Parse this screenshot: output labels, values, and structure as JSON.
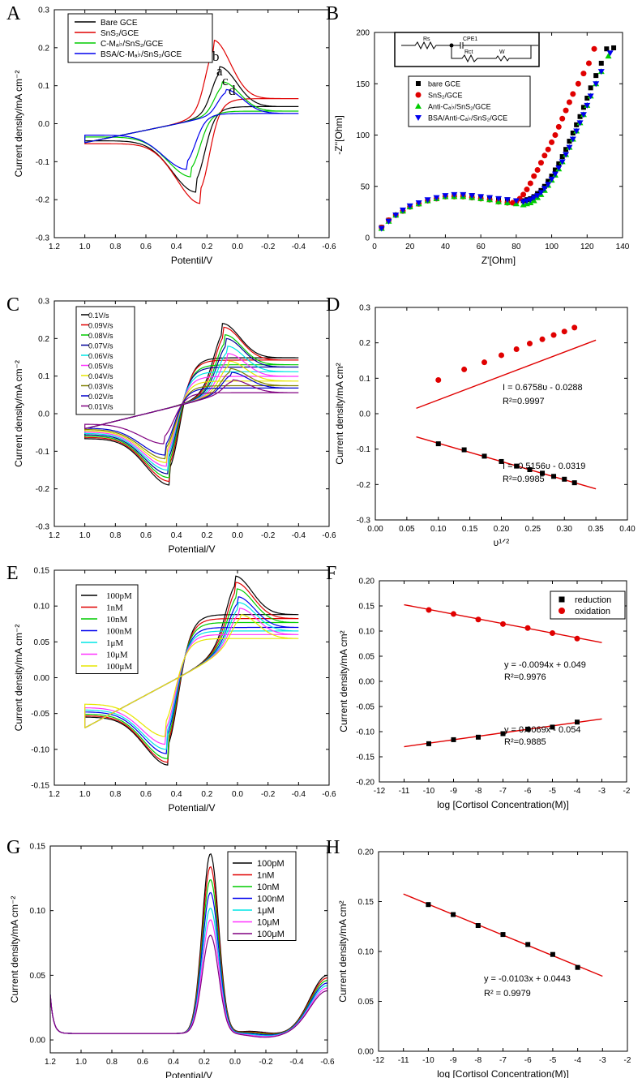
{
  "chart_data": [
    {
      "type": "line",
      "panel_label": "A",
      "xlabel": "Potentil/V",
      "ylabel": "Current density/mA cm⁻²",
      "xlim": [
        1.2,
        -0.6
      ],
      "ylim": [
        -0.3,
        0.3
      ],
      "xticks": [
        "1.2",
        "1.0",
        "0.8",
        "0.6",
        "0.4",
        "0.2",
        "0.0",
        "-0.2",
        "-0.4",
        "-0.6"
      ],
      "yticks": [
        "-0.3",
        "-0.2",
        "-0.1",
        "0.0",
        "0.1",
        "0.2",
        "0.3"
      ],
      "legend_position": "top-left",
      "annotations": [
        "b",
        "a",
        "c",
        "d"
      ],
      "series": [
        {
          "name": "Bare GCE",
          "color": "#000000",
          "x_range": [
            1.0,
            -0.4
          ],
          "anodic_peak": {
            "x": 0.12,
            "y": 0.15
          },
          "cathodic_peak": {
            "x": 0.27,
            "y": -0.18
          }
        },
        {
          "name": "SnS₂/GCE",
          "color": "#e00000",
          "x_range": [
            1.0,
            -0.4
          ],
          "anodic_peak": {
            "x": 0.16,
            "y": 0.22
          },
          "cathodic_peak": {
            "x": 0.24,
            "y": -0.21
          }
        },
        {
          "name": "C-Mₐ♭/SnS₂/GCE",
          "color": "#00cc00",
          "x_range": [
            1.0,
            -0.4
          ],
          "anodic_peak": {
            "x": 0.1,
            "y": 0.11
          },
          "cathodic_peak": {
            "x": 0.3,
            "y": -0.14
          }
        },
        {
          "name": "BSA/C-Mₐ♭/SnS₂/GCE",
          "color": "#0000ee",
          "x_range": [
            1.0,
            -0.4
          ],
          "anodic_peak": {
            "x": 0.08,
            "y": 0.09
          },
          "cathodic_peak": {
            "x": 0.33,
            "y": -0.12
          }
        }
      ]
    },
    {
      "type": "scatter",
      "panel_label": "B",
      "xlabel": "Z'[Ohm]",
      "ylabel": "-Z''[Ohm]",
      "xlim": [
        0,
        140
      ],
      "ylim": [
        0,
        200
      ],
      "xticks": [
        "0",
        "20",
        "40",
        "60",
        "80",
        "100",
        "120",
        "140"
      ],
      "yticks": [
        "0",
        "50",
        "100",
        "150",
        "200"
      ],
      "legend_position": "top-left",
      "circuit_labels": [
        "Rs",
        "CPE1",
        "Rct",
        "W"
      ],
      "series": [
        {
          "name": "bare GCE",
          "marker": "square",
          "color": "#000000",
          "x": [
            4,
            8,
            12,
            16,
            20,
            25,
            30,
            35,
            40,
            45,
            50,
            55,
            60,
            65,
            70,
            75,
            80,
            84,
            86,
            88,
            90,
            92,
            94,
            96,
            98,
            100,
            102,
            104,
            106,
            108,
            110,
            112,
            114,
            116,
            118,
            120,
            122,
            125,
            128,
            131,
            135
          ],
          "y": [
            10,
            17,
            22,
            26,
            30,
            33,
            36,
            38,
            40,
            41,
            41,
            41,
            40,
            39,
            38,
            37,
            36,
            36,
            37,
            38,
            40,
            43,
            46,
            50,
            55,
            60,
            66,
            72,
            79,
            86,
            94,
            102,
            110,
            118,
            127,
            136,
            146,
            158,
            170,
            184,
            185
          ]
        },
        {
          "name": "SnS₂/GCE",
          "marker": "circle",
          "color": "#e00000",
          "x": [
            4,
            8,
            12,
            16,
            20,
            25,
            30,
            35,
            40,
            45,
            50,
            55,
            60,
            65,
            70,
            75,
            78,
            80,
            82,
            84,
            86,
            88,
            90,
            92,
            94,
            96,
            98,
            100,
            102,
            104,
            106,
            108,
            110,
            112,
            115,
            118,
            121,
            124
          ],
          "y": [
            10,
            17,
            22,
            26,
            30,
            33,
            36,
            38,
            40,
            40,
            40,
            39,
            38,
            37,
            35,
            34,
            34,
            35,
            38,
            42,
            47,
            53,
            60,
            66,
            73,
            80,
            86,
            93,
            100,
            108,
            116,
            124,
            132,
            140,
            150,
            160,
            170,
            184
          ]
        },
        {
          "name": "Anti-Cₐ♭/SnS₂/GCE",
          "marker": "triangle-up",
          "color": "#00cc00",
          "x": [
            4,
            8,
            12,
            16,
            20,
            25,
            30,
            35,
            40,
            45,
            50,
            55,
            60,
            65,
            70,
            75,
            80,
            84,
            86,
            88,
            90,
            92,
            94,
            96,
            98,
            100,
            102,
            104,
            106,
            108,
            110,
            112,
            114,
            116,
            118,
            120,
            122,
            125,
            128,
            132
          ],
          "y": [
            9,
            16,
            22,
            26,
            30,
            33,
            36,
            38,
            40,
            40,
            40,
            39,
            38,
            37,
            35,
            34,
            33,
            32,
            33,
            34,
            36,
            39,
            42,
            46,
            51,
            56,
            61,
            67,
            74,
            81,
            88,
            96,
            104,
            112,
            120,
            129,
            138,
            150,
            162,
            177
          ]
        },
        {
          "name": "BSA/Anti-Cₐ♭/SnS₂/GCE",
          "marker": "triangle-down",
          "color": "#0000ee",
          "x": [
            4,
            8,
            12,
            16,
            20,
            25,
            30,
            35,
            40,
            45,
            50,
            55,
            60,
            65,
            70,
            75,
            80,
            84,
            86,
            88,
            90,
            92,
            94,
            96,
            98,
            100,
            102,
            104,
            106,
            108,
            110,
            112,
            114,
            116,
            118,
            120,
            122,
            125,
            128,
            133
          ],
          "y": [
            9,
            16,
            22,
            27,
            31,
            34,
            37,
            39,
            41,
            42,
            42,
            41,
            40,
            39,
            38,
            37,
            36,
            35,
            36,
            37,
            39,
            41,
            44,
            48,
            52,
            57,
            62,
            68,
            74,
            81,
            88,
            96,
            104,
            112,
            120,
            129,
            138,
            150,
            162,
            180
          ]
        }
      ]
    },
    {
      "type": "line",
      "panel_label": "C",
      "xlabel": "Potential/V",
      "ylabel": "Current density/mA cm⁻²",
      "xlim": [
        1.2,
        -0.6
      ],
      "ylim": [
        -0.3,
        0.3
      ],
      "xticks": [
        "1.2",
        "1.0",
        "0.8",
        "0.6",
        "0.4",
        "0.2",
        "0.0",
        "-0.2",
        "-0.4",
        "-0.6"
      ],
      "yticks": [
        "-0.3",
        "-0.2",
        "-0.1",
        "0.0",
        "0.1",
        "0.2",
        "0.3"
      ],
      "legend_position": "top-left",
      "series": [
        {
          "name": "0.1V/s",
          "color": "#000000",
          "ipa": 0.24,
          "ipc": -0.19
        },
        {
          "name": "0.09V/s",
          "color": "#e00000",
          "ipa": 0.23,
          "ipc": -0.18
        },
        {
          "name": "0.08V/s",
          "color": "#00cc00",
          "ipa": 0.21,
          "ipc": -0.17
        },
        {
          "name": "0.07V/s",
          "color": "#000099",
          "ipa": 0.2,
          "ipc": -0.16
        },
        {
          "name": "0.06V/s",
          "color": "#00e5e5",
          "ipa": 0.18,
          "ipc": -0.15
        },
        {
          "name": "0.05V/s",
          "color": "#ff33ff",
          "ipa": 0.16,
          "ipc": -0.14
        },
        {
          "name": "0.04V/s",
          "color": "#e6e600",
          "ipa": 0.14,
          "ipc": -0.13
        },
        {
          "name": "0.03V/s",
          "color": "#808000",
          "ipa": 0.12,
          "ipc": -0.12
        },
        {
          "name": "0.02V/s",
          "color": "#0000cc",
          "ipa": 0.11,
          "ipc": -0.11
        },
        {
          "name": "0.01V/s",
          "color": "#800080",
          "ipa": 0.09,
          "ipc": -0.08
        }
      ]
    },
    {
      "type": "scatter",
      "panel_label": "D",
      "xlabel": "υ¹ᐟ²",
      "ylabel": "Current density/mA cm²",
      "xlim": [
        0.0,
        0.4
      ],
      "ylim": [
        -0.3,
        0.3
      ],
      "xticks": [
        "0.00",
        "0.05",
        "0.10",
        "0.15",
        "0.20",
        "0.25",
        "0.30",
        "0.35",
        "0.40"
      ],
      "yticks": [
        "-0.3",
        "-0.2",
        "-0.1",
        "0.0",
        "0.1",
        "0.2",
        "0.3"
      ],
      "annotations": [
        "I = 0.6758υ - 0.0288",
        "R²=0.9997",
        "I = -0.5156υ - 0.0319",
        "R²=0.9985"
      ],
      "series": [
        {
          "name": "oxidation",
          "marker": "circle",
          "color": "#e00000",
          "x": [
            0.1,
            0.141,
            0.173,
            0.2,
            0.224,
            0.245,
            0.265,
            0.283,
            0.3,
            0.316
          ],
          "y": [
            0.095,
            0.125,
            0.145,
            0.165,
            0.182,
            0.198,
            0.21,
            0.222,
            0.232,
            0.243
          ],
          "fit": {
            "slope": 0.6758,
            "intercept": -0.0288,
            "x_range": [
              0.065,
              0.35
            ]
          }
        },
        {
          "name": "reduction",
          "marker": "square",
          "color": "#000000",
          "x": [
            0.1,
            0.141,
            0.173,
            0.2,
            0.224,
            0.245,
            0.265,
            0.283,
            0.3,
            0.316
          ],
          "y": [
            -0.085,
            -0.102,
            -0.12,
            -0.135,
            -0.148,
            -0.158,
            -0.168,
            -0.177,
            -0.185,
            -0.195
          ],
          "fit": {
            "slope": -0.5156,
            "intercept": -0.0319,
            "x_range": [
              0.065,
              0.35
            ]
          }
        }
      ]
    },
    {
      "type": "line",
      "panel_label": "E",
      "xlabel": "Potential/V",
      "ylabel": "Current density/mA cm⁻²",
      "xlim": [
        1.2,
        -0.6
      ],
      "ylim": [
        -0.15,
        0.15
      ],
      "xticks": [
        "1.2",
        "1.0",
        "0.8",
        "0.6",
        "0.4",
        "0.2",
        "0.0",
        "-0.2",
        "-0.4",
        "-0.6"
      ],
      "yticks": [
        "-0.15",
        "-0.10",
        "-0.05",
        "0.00",
        "0.05",
        "0.10",
        "0.15"
      ],
      "legend_position": "top-left",
      "series": [
        {
          "name": "100pM",
          "color": "#000000",
          "ipa": 0.142,
          "ipc": -0.122
        },
        {
          "name": "1nM",
          "color": "#e00000",
          "ipa": 0.133,
          "ipc": -0.118
        },
        {
          "name": "10nM",
          "color": "#00cc00",
          "ipa": 0.124,
          "ipc": -0.113
        },
        {
          "name": "100nM",
          "color": "#0000ee",
          "ipa": 0.113,
          "ipc": -0.106
        },
        {
          "name": "1μM",
          "color": "#00e5e5",
          "ipa": 0.105,
          "ipc": -0.1
        },
        {
          "name": "10μM",
          "color": "#ff33ff",
          "ipa": 0.097,
          "ipc": -0.093
        },
        {
          "name": "100μM",
          "color": "#e6e600",
          "ipa": 0.088,
          "ipc": -0.082
        }
      ]
    },
    {
      "type": "scatter",
      "panel_label": "F",
      "xlabel": "log [Cortisol Concentration(M)]",
      "ylabel": "Current density/mA cm²",
      "xlim": [
        -12,
        -2
      ],
      "ylim": [
        -0.2,
        0.2
      ],
      "xticks": [
        "-12",
        "-11",
        "-10",
        "-9",
        "-8",
        "-7",
        "-6",
        "-5",
        "-4",
        "-3",
        "-2"
      ],
      "yticks": [
        "-0.20",
        "-0.15",
        "-0.10",
        "-0.05",
        "0.00",
        "0.05",
        "0.10",
        "0.15",
        "0.20"
      ],
      "legend_position": "top-right",
      "annotations": [
        "y = -0.0094x + 0.049",
        "R²=0.9976",
        "y = 0.0069x - 0.054",
        "R²=0.9885"
      ],
      "series": [
        {
          "name": "reduction",
          "marker": "square",
          "color": "#000000",
          "x": [
            -10,
            -9,
            -8,
            -7,
            -6,
            -5,
            -4
          ],
          "y": [
            -0.124,
            -0.116,
            -0.111,
            -0.104,
            -0.095,
            -0.091,
            -0.081
          ],
          "fit": {
            "slope": 0.0069,
            "intercept": -0.054,
            "x_range": [
              -11,
              -3
            ]
          }
        },
        {
          "name": "oxidation",
          "marker": "circle",
          "color": "#e00000",
          "x": [
            -10,
            -9,
            -8,
            -7,
            -6,
            -5,
            -4
          ],
          "y": [
            0.142,
            0.134,
            0.123,
            0.114,
            0.106,
            0.096,
            0.085
          ],
          "fit": {
            "slope": -0.0094,
            "intercept": 0.049,
            "x_range": [
              -11,
              -3
            ]
          }
        }
      ]
    },
    {
      "type": "line",
      "panel_label": "G",
      "xlabel": "Potential/V",
      "ylabel": "Current density/mA cm⁻²",
      "xlim": [
        1.2,
        -0.6
      ],
      "ylim": [
        -0.01,
        0.15
      ],
      "xticks": [
        "1.2",
        "1.0",
        "0.8",
        "0.6",
        "0.4",
        "0.2",
        "0.0",
        "-0.2",
        "-0.4",
        "-0.6"
      ],
      "yticks": [
        "0.00",
        "0.05",
        "0.10",
        "0.15"
      ],
      "legend_position": "top-right",
      "series": [
        {
          "name": "100pM",
          "color": "#000000",
          "peak": 0.147
        },
        {
          "name": "1nM",
          "color": "#e00000",
          "peak": 0.137
        },
        {
          "name": "10nM",
          "color": "#00cc00",
          "peak": 0.127
        },
        {
          "name": "100nM",
          "color": "#0000ee",
          "peak": 0.117
        },
        {
          "name": "1μM",
          "color": "#00e5e5",
          "peak": 0.105
        },
        {
          "name": "10μM",
          "color": "#ff33ff",
          "peak": 0.096
        },
        {
          "name": "100μM",
          "color": "#800080",
          "peak": 0.084
        }
      ]
    },
    {
      "type": "scatter",
      "panel_label": "H",
      "xlabel": "log [Cortisol Concentration(M)]",
      "ylabel": "Current density/mA cm²",
      "xlim": [
        -12,
        -2
      ],
      "ylim": [
        0.0,
        0.2
      ],
      "xticks": [
        "-12",
        "-11",
        "-10",
        "-9",
        "-8",
        "-7",
        "-6",
        "-5",
        "-4",
        "-3",
        "-2"
      ],
      "yticks": [
        "0.00",
        "0.05",
        "0.10",
        "0.15",
        "0.20"
      ],
      "annotations": [
        "y = -0.0103x + 0.0443",
        "R² = 0.9979"
      ],
      "series": [
        {
          "marker": "square",
          "color": "#000000",
          "x": [
            -10,
            -9,
            -8,
            -7,
            -6,
            -5,
            -4
          ],
          "y": [
            0.147,
            0.137,
            0.126,
            0.117,
            0.107,
            0.097,
            0.084
          ],
          "fit": {
            "slope": -0.0103,
            "intercept": 0.0443,
            "x_range": [
              -11,
              -3
            ]
          }
        }
      ]
    }
  ]
}
